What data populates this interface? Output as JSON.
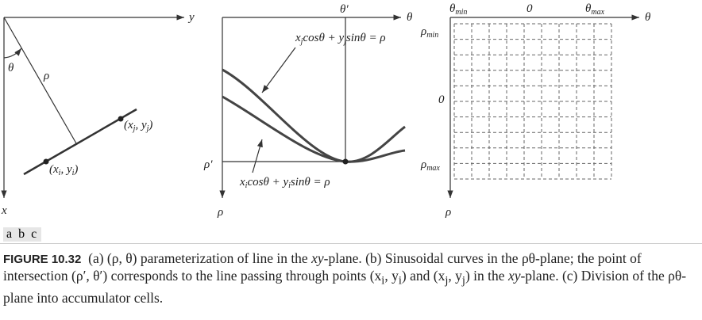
{
  "panel_a": {
    "y_axis": "y",
    "x_axis": "x",
    "angle": "θ",
    "normal": "ρ",
    "point_i": [
      "(x",
      "i",
      ", y",
      "i",
      ")"
    ],
    "point_j": [
      "(x",
      "j",
      ", y",
      "j",
      ")"
    ]
  },
  "panel_b": {
    "theta_prime": "θ′",
    "theta_axis": "θ",
    "rho_prime": "ρ′",
    "rho_axis": "ρ",
    "curve_j": [
      "x",
      "j",
      "cosθ + ",
      "y",
      "j",
      "sinθ = ρ"
    ],
    "curve_i": [
      "x",
      "i",
      "cosθ + ",
      "y",
      "i",
      "sinθ = ρ"
    ]
  },
  "panel_c": {
    "theta_min": [
      "θ",
      "min"
    ],
    "theta_zero": "0",
    "theta_max": [
      "θ",
      "max"
    ],
    "theta_axis": "θ",
    "rho_min": [
      "ρ",
      "min"
    ],
    "rho_zero": "0",
    "rho_max": [
      "ρ",
      "max"
    ],
    "rho_axis": "ρ"
  },
  "panel_labels": [
    "a",
    "b",
    "c"
  ],
  "caption": {
    "label": "FIGURE 10.32",
    "parts": [
      "(a) (ρ, θ) parameterization of line in the ",
      "xy",
      "-plane. (b) Sinusoidal curves in the ρθ-plane; the point of intersection (ρ′, θ′) corresponds to the line passing through points (x",
      "i",
      ", y",
      "i",
      ") and (x",
      "j",
      ", y",
      "j",
      ") in the ",
      "xy",
      "-plane. (c) Division of the ρθ-plane into accumulator cells."
    ]
  }
}
